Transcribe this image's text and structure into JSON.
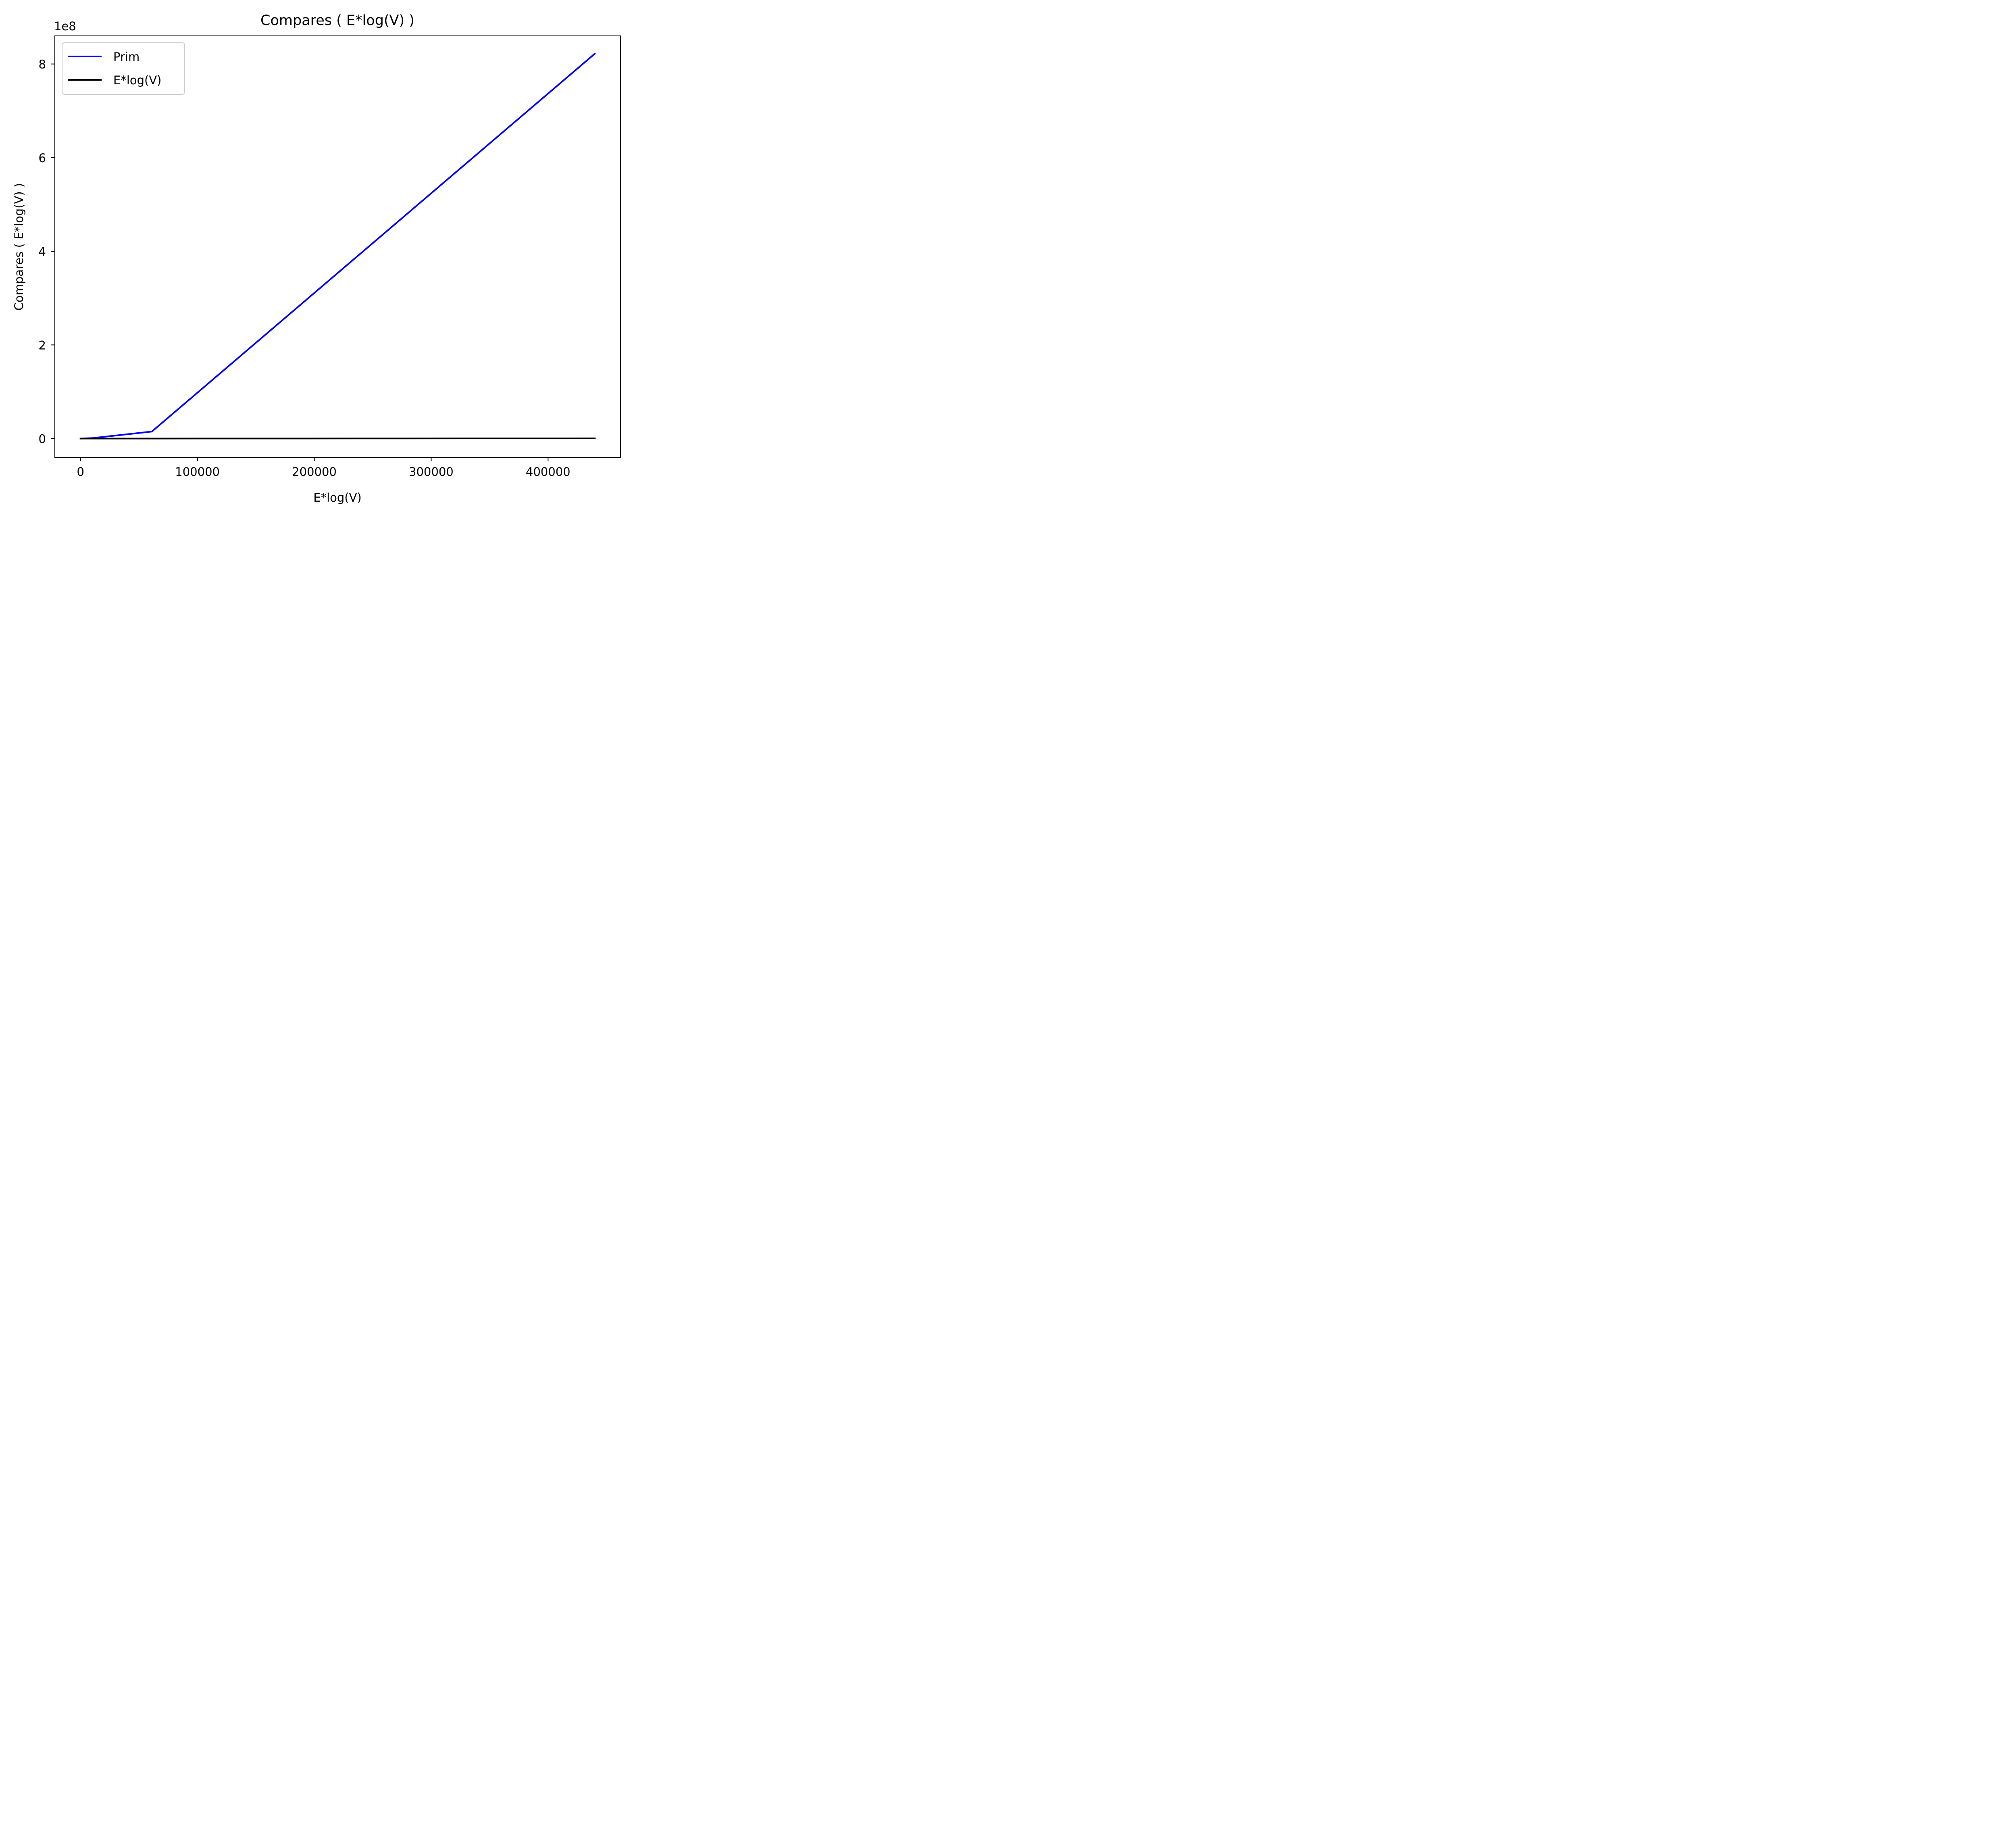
{
  "chart_data": {
    "type": "line",
    "title": "Compares ( E*log(V) )",
    "xlabel": "E*log(V)",
    "ylabel": "Compares ( E*log(V) )",
    "xlim": [
      -22000,
      462000
    ],
    "ylim": [
      -40000000,
      860000000
    ],
    "x_ticks": [
      0,
      100000,
      200000,
      300000,
      400000
    ],
    "x_tick_labels": [
      "0",
      "100000",
      "200000",
      "300000",
      "400000"
    ],
    "y_ticks": [
      0,
      200000000,
      400000000,
      600000000,
      800000000
    ],
    "y_tick_labels": [
      "0",
      "2",
      "4",
      "6",
      "8"
    ],
    "y_offset_label": "1e8",
    "grid": false,
    "legend_position": "upper-left",
    "series": [
      {
        "name": "Prim",
        "color": "#0000ff",
        "x": [
          0,
          10000,
          61000,
          440000
        ],
        "y": [
          0,
          1000000,
          15000000,
          822000000
        ]
      },
      {
        "name": "E*log(V)",
        "color": "#000000",
        "x": [
          0,
          10000,
          61000,
          440000
        ],
        "y": [
          0,
          10000,
          61000,
          440000
        ]
      }
    ]
  }
}
